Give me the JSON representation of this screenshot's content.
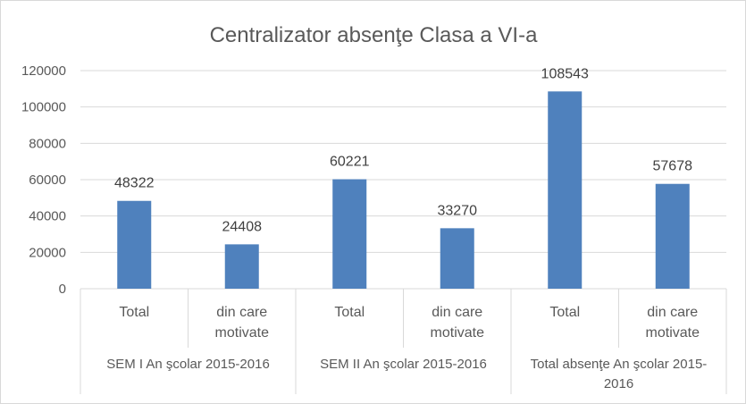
{
  "chart_data": {
    "type": "bar",
    "title": "Centralizator absenţe Clasa a VI-a",
    "categories": [
      {
        "label_lines": [
          "Total"
        ]
      },
      {
        "label_lines": [
          "din care",
          "motivate"
        ]
      },
      {
        "label_lines": [
          "Total"
        ]
      },
      {
        "label_lines": [
          "din care",
          "motivate"
        ]
      },
      {
        "label_lines": [
          "Total"
        ]
      },
      {
        "label_lines": [
          "din care",
          "motivate"
        ]
      }
    ],
    "groups": [
      {
        "label_lines": [
          "SEM I An şcolar 2015-2016"
        ]
      },
      {
        "label_lines": [
          "SEM II An şcolar 2015-2016"
        ]
      },
      {
        "label_lines": [
          "Total absenţe An şcolar 2015-",
          "2016"
        ]
      }
    ],
    "values": [
      48322,
      24408,
      60221,
      33270,
      108543,
      57678
    ],
    "ylim": [
      0,
      120000
    ],
    "yticks": [
      0,
      20000,
      40000,
      60000,
      80000,
      100000,
      120000
    ],
    "grid": true,
    "legend": "none",
    "colors": {
      "bar": "#4f81bd",
      "grid": "#d9d9d9",
      "text": "#595959"
    }
  }
}
